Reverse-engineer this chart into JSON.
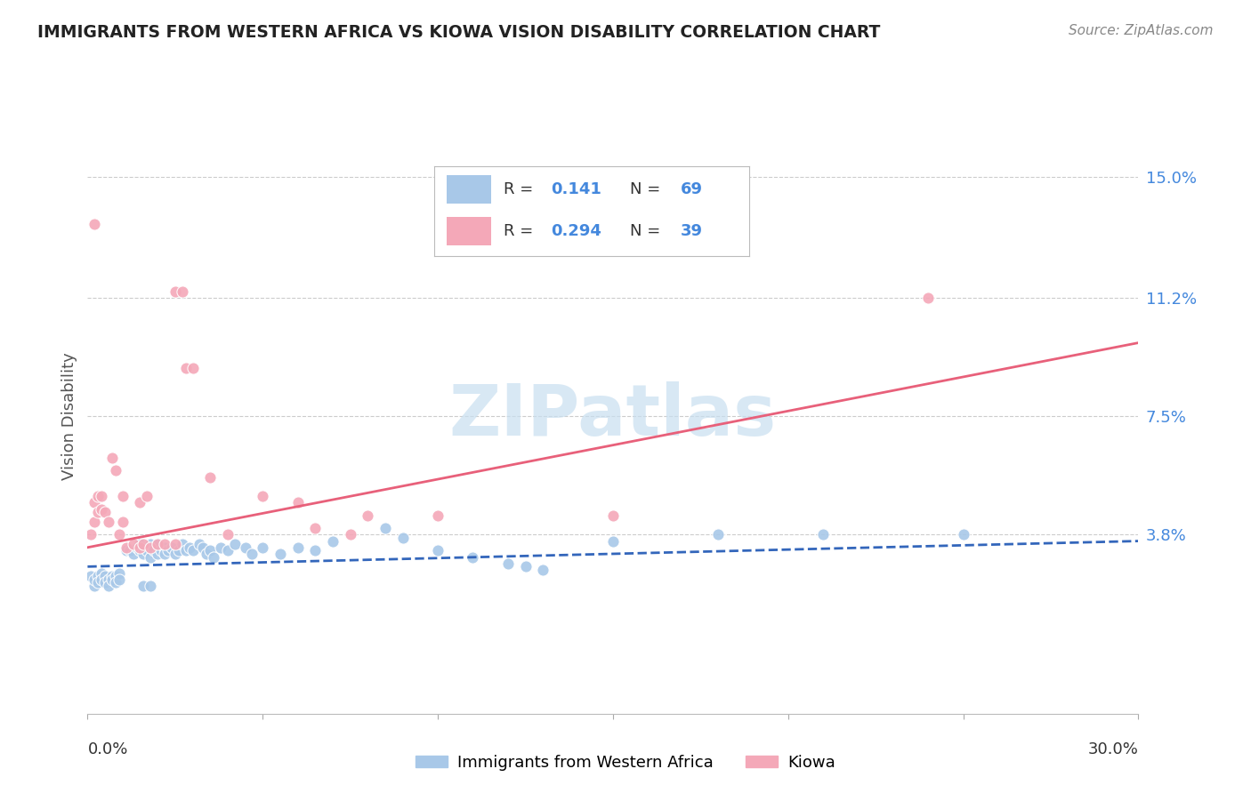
{
  "title": "IMMIGRANTS FROM WESTERN AFRICA VS KIOWA VISION DISABILITY CORRELATION CHART",
  "source": "Source: ZipAtlas.com",
  "ylabel": "Vision Disability",
  "y_tick_labels": [
    "15.0%",
    "11.2%",
    "7.5%",
    "3.8%"
  ],
  "y_tick_values": [
    0.15,
    0.112,
    0.075,
    0.038
  ],
  "x_range": [
    0.0,
    0.3
  ],
  "y_range": [
    -0.018,
    0.168
  ],
  "legend_label1": "Immigrants from Western Africa",
  "legend_label2": "Kiowa",
  "blue_color": "#a8c8e8",
  "pink_color": "#f4a8b8",
  "blue_line_color": "#3366bb",
  "pink_line_color": "#e8607a",
  "legend_text_color": "#333333",
  "legend_r_color": "#4488dd",
  "legend_n_color": "#4488dd",
  "watermark": "ZIPatlas",
  "watermark_color": "#c8dff0",
  "blue_scatter": [
    [
      0.001,
      0.025
    ],
    [
      0.002,
      0.022
    ],
    [
      0.002,
      0.024
    ],
    [
      0.003,
      0.025
    ],
    [
      0.003,
      0.023
    ],
    [
      0.004,
      0.026
    ],
    [
      0.004,
      0.024
    ],
    [
      0.005,
      0.025
    ],
    [
      0.005,
      0.023
    ],
    [
      0.006,
      0.024
    ],
    [
      0.006,
      0.022
    ],
    [
      0.007,
      0.025
    ],
    [
      0.007,
      0.024
    ],
    [
      0.008,
      0.025
    ],
    [
      0.008,
      0.023
    ],
    [
      0.009,
      0.026
    ],
    [
      0.009,
      0.024
    ],
    [
      0.011,
      0.033
    ],
    [
      0.012,
      0.033
    ],
    [
      0.013,
      0.032
    ],
    [
      0.014,
      0.034
    ],
    [
      0.015,
      0.033
    ],
    [
      0.015,
      0.035
    ],
    [
      0.016,
      0.034
    ],
    [
      0.016,
      0.032
    ],
    [
      0.017,
      0.033
    ],
    [
      0.018,
      0.035
    ],
    [
      0.018,
      0.031
    ],
    [
      0.019,
      0.033
    ],
    [
      0.02,
      0.035
    ],
    [
      0.02,
      0.032
    ],
    [
      0.021,
      0.033
    ],
    [
      0.022,
      0.034
    ],
    [
      0.022,
      0.032
    ],
    [
      0.023,
      0.033
    ],
    [
      0.024,
      0.034
    ],
    [
      0.025,
      0.032
    ],
    [
      0.026,
      0.033
    ],
    [
      0.027,
      0.035
    ],
    [
      0.028,
      0.033
    ],
    [
      0.029,
      0.034
    ],
    [
      0.03,
      0.033
    ],
    [
      0.032,
      0.035
    ],
    [
      0.033,
      0.034
    ],
    [
      0.034,
      0.032
    ],
    [
      0.035,
      0.033
    ],
    [
      0.036,
      0.031
    ],
    [
      0.038,
      0.034
    ],
    [
      0.04,
      0.033
    ],
    [
      0.042,
      0.035
    ],
    [
      0.045,
      0.034
    ],
    [
      0.047,
      0.032
    ],
    [
      0.05,
      0.034
    ],
    [
      0.055,
      0.032
    ],
    [
      0.06,
      0.034
    ],
    [
      0.065,
      0.033
    ],
    [
      0.07,
      0.036
    ],
    [
      0.085,
      0.04
    ],
    [
      0.09,
      0.037
    ],
    [
      0.1,
      0.033
    ],
    [
      0.11,
      0.031
    ],
    [
      0.12,
      0.029
    ],
    [
      0.125,
      0.028
    ],
    [
      0.13,
      0.027
    ],
    [
      0.15,
      0.036
    ],
    [
      0.18,
      0.038
    ],
    [
      0.21,
      0.038
    ],
    [
      0.25,
      0.038
    ],
    [
      0.016,
      0.022
    ],
    [
      0.018,
      0.022
    ]
  ],
  "pink_scatter": [
    [
      0.001,
      0.038
    ],
    [
      0.002,
      0.042
    ],
    [
      0.002,
      0.048
    ],
    [
      0.003,
      0.045
    ],
    [
      0.003,
      0.05
    ],
    [
      0.004,
      0.046
    ],
    [
      0.004,
      0.05
    ],
    [
      0.005,
      0.045
    ],
    [
      0.006,
      0.042
    ],
    [
      0.007,
      0.062
    ],
    [
      0.008,
      0.058
    ],
    [
      0.009,
      0.038
    ],
    [
      0.01,
      0.05
    ],
    [
      0.01,
      0.042
    ],
    [
      0.011,
      0.034
    ],
    [
      0.013,
      0.035
    ],
    [
      0.015,
      0.048
    ],
    [
      0.015,
      0.034
    ],
    [
      0.016,
      0.035
    ],
    [
      0.017,
      0.05
    ],
    [
      0.018,
      0.034
    ],
    [
      0.02,
      0.035
    ],
    [
      0.022,
      0.035
    ],
    [
      0.025,
      0.035
    ],
    [
      0.025,
      0.114
    ],
    [
      0.027,
      0.114
    ],
    [
      0.028,
      0.09
    ],
    [
      0.03,
      0.09
    ],
    [
      0.035,
      0.056
    ],
    [
      0.04,
      0.038
    ],
    [
      0.05,
      0.05
    ],
    [
      0.06,
      0.048
    ],
    [
      0.065,
      0.04
    ],
    [
      0.075,
      0.038
    ],
    [
      0.08,
      0.044
    ],
    [
      0.1,
      0.044
    ],
    [
      0.15,
      0.044
    ],
    [
      0.24,
      0.112
    ],
    [
      0.002,
      0.135
    ]
  ],
  "blue_trend": {
    "x_start": 0.0,
    "x_end": 0.3,
    "y_start": 0.028,
    "y_end": 0.036
  },
  "pink_trend": {
    "x_start": 0.0,
    "x_end": 0.3,
    "y_start": 0.034,
    "y_end": 0.098
  }
}
